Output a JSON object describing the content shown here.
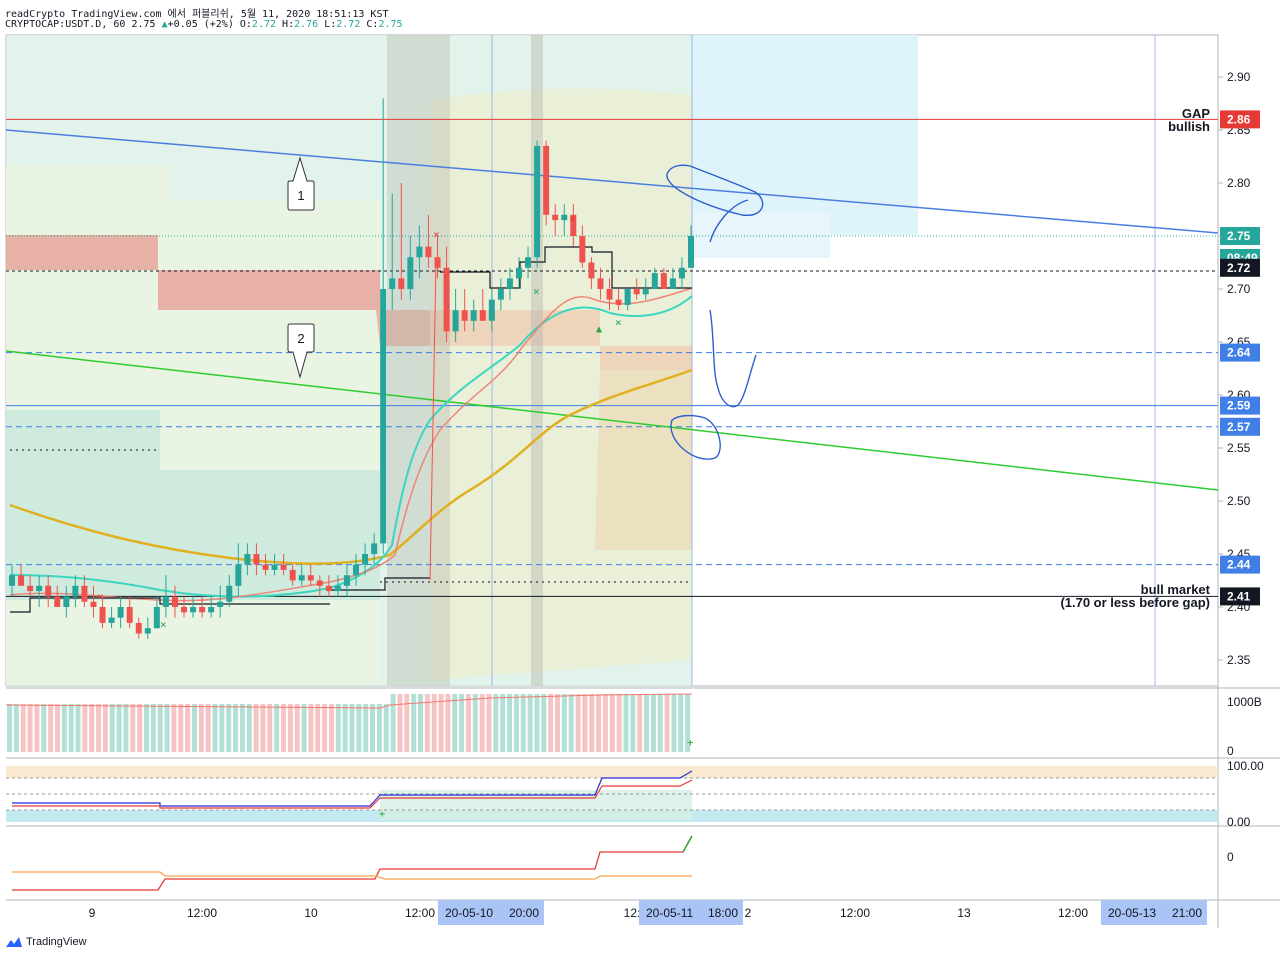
{
  "header": {
    "line1": "readCrypto TradingView.com 에서 퍼블리쉬, 5월 11, 2020 18:51:13 KST",
    "symbol": "CRYPTOCAP:USDT.D, 60",
    "last": "2.75",
    "change": "+0.05 (+2%)",
    "open_label": "O:",
    "open": "2.72",
    "high_label": "H:",
    "high": "2.76",
    "low_label": "L:",
    "low": "2.72",
    "close_label": "C:",
    "close": "2.75"
  },
  "footer": {
    "brand": "TradingView"
  },
  "colors": {
    "up": "#26a69a",
    "down": "#ef5350",
    "ma_gold": "#e0b020",
    "fast_line": "#3cd6c0",
    "slow_line": "#ef7b6e",
    "trend_blue": "#4a7fe0",
    "trend_green": "#2ecc2e",
    "level_blue": "#3f7fe6",
    "gap_red": "#e53935"
  },
  "chart_data": {
    "type": "candlestick",
    "symbol": "CRYPTOCAP:USDT.D",
    "timeframe": "60",
    "y_ticks": [
      "2.90",
      "2.85",
      "2.80",
      "2.75",
      "2.70",
      "2.65",
      "2.60",
      "2.55",
      "2.50",
      "2.45",
      "2.40",
      "2.35"
    ],
    "x_ticks": [
      "9",
      "12:00",
      "10",
      "12:00",
      "20:00",
      "12:",
      "18:00",
      "2",
      "12:00",
      "13",
      "12:00",
      "21:00"
    ],
    "x_highlights": [
      "20-05-10",
      "20-05-11",
      "20-05-13"
    ],
    "price_labels": [
      "2.86",
      "2.75",
      "08:49",
      "2.72",
      "2.64",
      "2.59",
      "2.57",
      "2.44",
      "2.41"
    ],
    "horizontal_levels": [
      {
        "price": 2.86,
        "style": "solid",
        "color": "#e53935",
        "label": "GAP",
        "label2": "bullish"
      },
      {
        "price": 2.64,
        "style": "dashed",
        "color": "#3f7fe6"
      },
      {
        "price": 2.59,
        "style": "solid",
        "color": "#3f7fe6"
      },
      {
        "price": 2.57,
        "style": "dashed",
        "color": "#3f7fe6"
      },
      {
        "price": 2.44,
        "style": "dashed",
        "color": "#3f7fe6"
      },
      {
        "price": 2.41,
        "style": "solid",
        "color": "#131722",
        "label": "bull market",
        "label2": "(1.70 or less before gap)"
      }
    ],
    "callouts": [
      "1",
      "2"
    ],
    "candles": [
      [
        2.42,
        2.44,
        2.41,
        2.43
      ],
      [
        2.43,
        2.44,
        2.42,
        2.42
      ],
      [
        2.42,
        2.43,
        2.41,
        2.415
      ],
      [
        2.415,
        2.43,
        2.4,
        2.42
      ],
      [
        2.42,
        2.43,
        2.4,
        2.41
      ],
      [
        2.41,
        2.42,
        2.4,
        2.4
      ],
      [
        2.4,
        2.42,
        2.39,
        2.41
      ],
      [
        2.41,
        2.43,
        2.4,
        2.42
      ],
      [
        2.42,
        2.43,
        2.4,
        2.405
      ],
      [
        2.405,
        2.42,
        2.39,
        2.4
      ],
      [
        2.4,
        2.41,
        2.38,
        2.385
      ],
      [
        2.385,
        2.4,
        2.38,
        2.39
      ],
      [
        2.39,
        2.41,
        2.38,
        2.4
      ],
      [
        2.4,
        2.41,
        2.38,
        2.385
      ],
      [
        2.385,
        2.39,
        2.37,
        2.375
      ],
      [
        2.375,
        2.39,
        2.37,
        2.38
      ],
      [
        2.38,
        2.41,
        2.38,
        2.4
      ],
      [
        2.4,
        2.43,
        2.39,
        2.41
      ],
      [
        2.41,
        2.42,
        2.39,
        2.4
      ],
      [
        2.4,
        2.41,
        2.39,
        2.395
      ],
      [
        2.395,
        2.41,
        2.39,
        2.4
      ],
      [
        2.4,
        2.41,
        2.39,
        2.395
      ],
      [
        2.395,
        2.41,
        2.39,
        2.4
      ],
      [
        2.4,
        2.42,
        2.39,
        2.405
      ],
      [
        2.405,
        2.43,
        2.4,
        2.42
      ],
      [
        2.42,
        2.46,
        2.41,
        2.44
      ],
      [
        2.44,
        2.46,
        2.43,
        2.45
      ],
      [
        2.45,
        2.46,
        2.43,
        2.44
      ],
      [
        2.44,
        2.45,
        2.43,
        2.435
      ],
      [
        2.435,
        2.45,
        2.43,
        2.44
      ],
      [
        2.44,
        2.45,
        2.43,
        2.435
      ],
      [
        2.435,
        2.44,
        2.42,
        2.425
      ],
      [
        2.425,
        2.44,
        2.42,
        2.43
      ],
      [
        2.43,
        2.44,
        2.42,
        2.425
      ],
      [
        2.425,
        2.43,
        2.41,
        2.42
      ],
      [
        2.42,
        2.43,
        2.41,
        2.415
      ],
      [
        2.415,
        2.43,
        2.41,
        2.42
      ],
      [
        2.42,
        2.44,
        2.41,
        2.43
      ],
      [
        2.43,
        2.45,
        2.42,
        2.44
      ],
      [
        2.44,
        2.46,
        2.43,
        2.45
      ],
      [
        2.45,
        2.47,
        2.44,
        2.46
      ],
      [
        2.46,
        2.88,
        2.45,
        2.7
      ],
      [
        2.7,
        2.79,
        2.68,
        2.71
      ],
      [
        2.71,
        2.8,
        2.69,
        2.7
      ],
      [
        2.7,
        2.75,
        2.69,
        2.73
      ],
      [
        2.73,
        2.76,
        2.71,
        2.74
      ],
      [
        2.74,
        2.77,
        2.72,
        2.73
      ],
      [
        2.73,
        2.75,
        2.71,
        2.72
      ],
      [
        2.72,
        2.74,
        2.65,
        2.66
      ],
      [
        2.66,
        2.7,
        2.65,
        2.68
      ],
      [
        2.68,
        2.7,
        2.66,
        2.67
      ],
      [
        2.67,
        2.69,
        2.66,
        2.68
      ],
      [
        2.68,
        2.7,
        2.67,
        2.67
      ],
      [
        2.67,
        2.7,
        2.66,
        2.69
      ],
      [
        2.69,
        2.71,
        2.68,
        2.7
      ],
      [
        2.7,
        2.72,
        2.69,
        2.71
      ],
      [
        2.71,
        2.73,
        2.7,
        2.72
      ],
      [
        2.72,
        2.74,
        2.71,
        2.73
      ],
      [
        2.73,
        2.84,
        2.72,
        2.835
      ],
      [
        2.835,
        2.84,
        2.76,
        2.77
      ],
      [
        2.77,
        2.78,
        2.75,
        2.765
      ],
      [
        2.765,
        2.78,
        2.75,
        2.77
      ],
      [
        2.77,
        2.78,
        2.74,
        2.75
      ],
      [
        2.75,
        2.76,
        2.72,
        2.725
      ],
      [
        2.725,
        2.73,
        2.7,
        2.71
      ],
      [
        2.71,
        2.72,
        2.69,
        2.7
      ],
      [
        2.7,
        2.71,
        2.68,
        2.69
      ],
      [
        2.69,
        2.7,
        2.68,
        2.685
      ],
      [
        2.685,
        2.7,
        2.68,
        2.7
      ],
      [
        2.7,
        2.71,
        2.69,
        2.695
      ],
      [
        2.695,
        2.71,
        2.69,
        2.7
      ],
      [
        2.7,
        2.72,
        2.7,
        2.715
      ],
      [
        2.715,
        2.72,
        2.7,
        2.7
      ],
      [
        2.7,
        2.72,
        2.7,
        2.71
      ],
      [
        2.71,
        2.73,
        2.7,
        2.72
      ],
      [
        2.72,
        2.76,
        2.72,
        2.75
      ]
    ]
  }
}
